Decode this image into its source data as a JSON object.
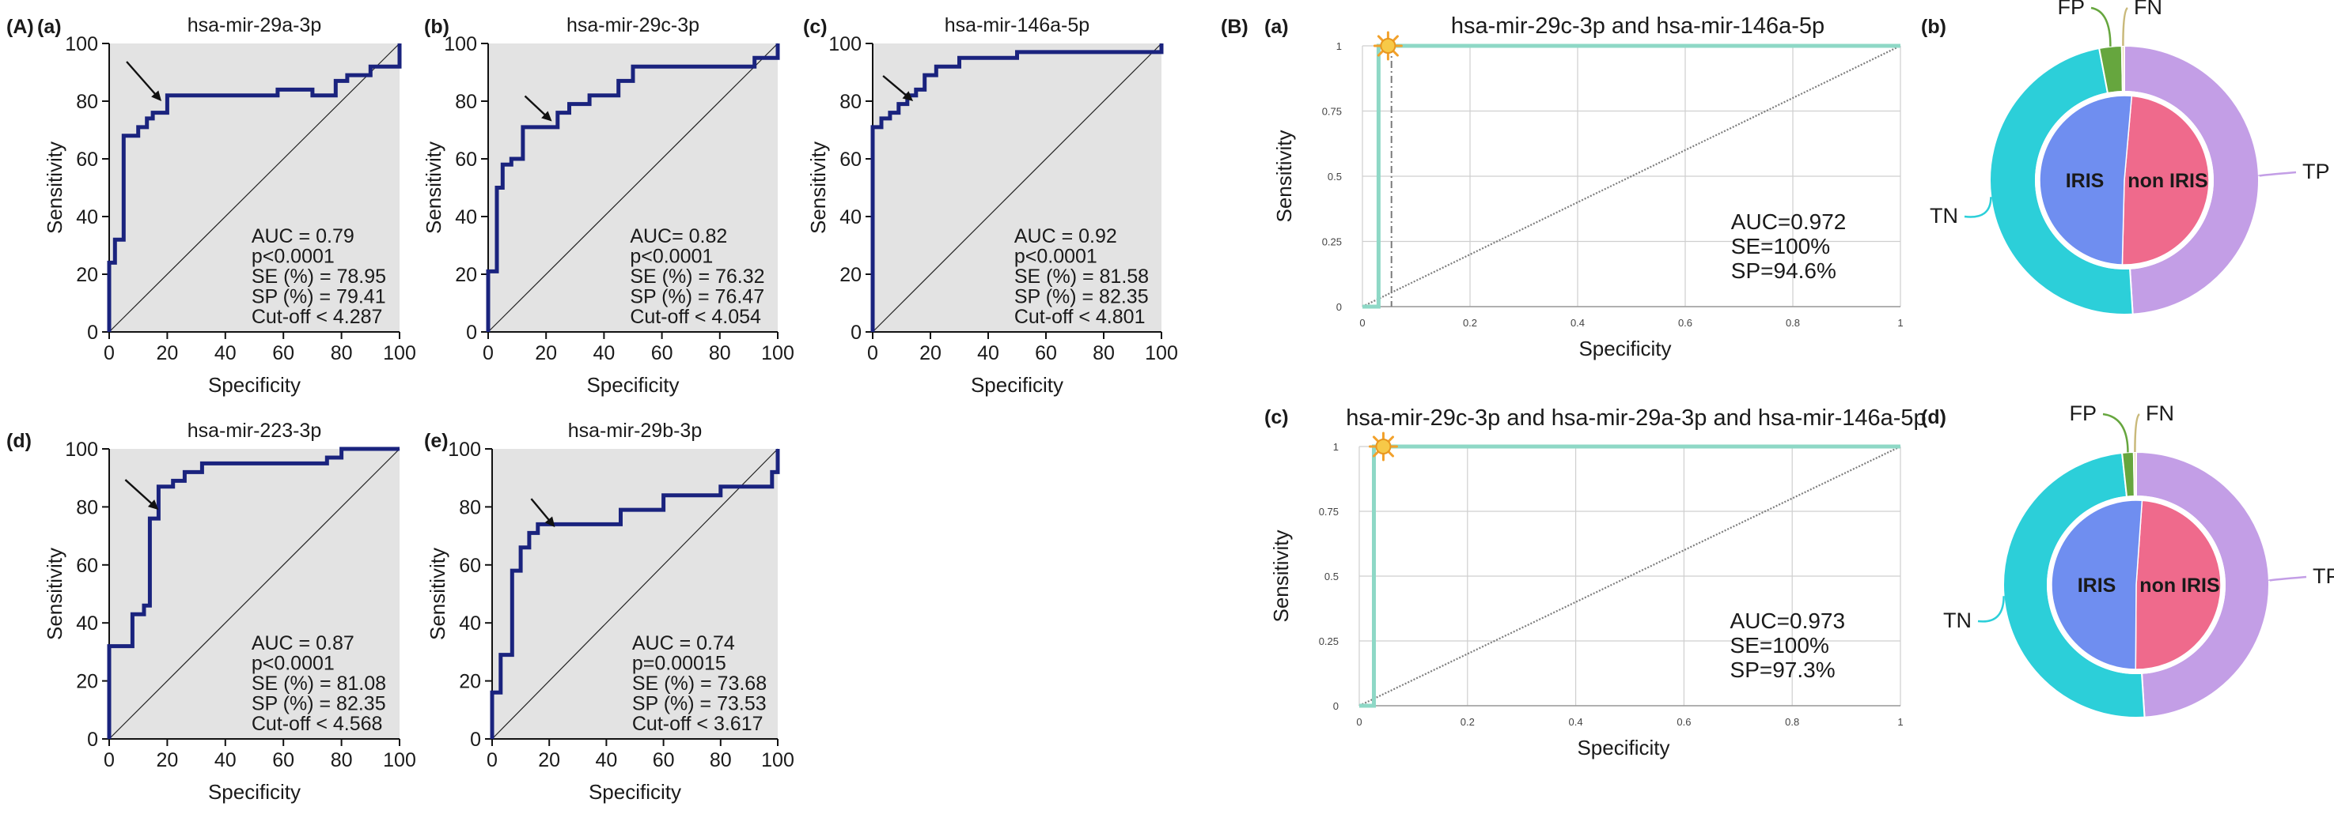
{
  "panel_labels": {
    "A": "(A)",
    "B": "(B)"
  },
  "chart_data": [
    {
      "id": "A-a",
      "type": "line",
      "label": "(a)",
      "title": "hsa-mir-29a-3p",
      "xlabel": "Specificity",
      "ylabel": "Sensitivity",
      "xlim": [
        0,
        100
      ],
      "ylim": [
        0,
        100
      ],
      "xticks": [
        "0",
        "20",
        "40",
        "60",
        "80",
        "100"
      ],
      "yticks": [
        "0",
        "20",
        "40",
        "60",
        "80",
        "100"
      ],
      "x": [
        0,
        0,
        2,
        2,
        5,
        5,
        10,
        10,
        13,
        13,
        15,
        15,
        20,
        20,
        58,
        58,
        70,
        70,
        78,
        78,
        82,
        82,
        90,
        90,
        100,
        100
      ],
      "y": [
        0,
        24,
        24,
        32,
        32,
        68,
        68,
        71,
        71,
        74,
        74,
        76,
        76,
        82,
        82,
        84,
        84,
        82,
        82,
        87,
        87,
        89,
        89,
        92,
        92,
        100
      ],
      "arrow_at": [
        18,
        80
      ],
      "stats": [
        "AUC = 0.79",
        "p<0.0001",
        "SE (%) = 78.95",
        "SP (%) = 79.41",
        "Cut-off < 4.287"
      ]
    },
    {
      "id": "A-b",
      "type": "line",
      "label": "(b)",
      "title": "hsa-mir-29c-3p",
      "xlabel": "Specificity",
      "ylabel": "Sensitivity",
      "xlim": [
        0,
        100
      ],
      "ylim": [
        0,
        100
      ],
      "xticks": [
        "0",
        "20",
        "40",
        "60",
        "80",
        "100"
      ],
      "yticks": [
        "0",
        "20",
        "40",
        "60",
        "80",
        "100"
      ],
      "x": [
        0,
        0,
        3,
        3,
        5,
        5,
        8,
        8,
        12,
        12,
        14,
        14,
        24,
        24,
        28,
        28,
        35,
        35,
        45,
        45,
        50,
        50,
        92,
        92,
        100,
        100
      ],
      "y": [
        0,
        21,
        21,
        50,
        50,
        58,
        58,
        60,
        60,
        71,
        71,
        71,
        71,
        76,
        76,
        79,
        79,
        82,
        82,
        87,
        87,
        92,
        92,
        95,
        95,
        100
      ],
      "arrow_at": [
        22,
        73
      ],
      "stats": [
        "AUC= 0.82",
        "p<0.0001",
        "SE (%) = 76.32",
        "SP (%) = 76.47",
        "Cut-off < 4.054"
      ]
    },
    {
      "id": "A-c",
      "type": "line",
      "label": "(c)",
      "title": "hsa-mir-146a-5p",
      "xlabel": "Specificity",
      "ylabel": "Sensitivity",
      "xlim": [
        0,
        100
      ],
      "ylim": [
        0,
        100
      ],
      "xticks": [
        "0",
        "20",
        "40",
        "60",
        "80",
        "100"
      ],
      "yticks": [
        "0",
        "20",
        "40",
        "60",
        "80",
        "100"
      ],
      "x": [
        0,
        0,
        3,
        3,
        6,
        6,
        9,
        9,
        12,
        12,
        15,
        15,
        18,
        18,
        22,
        22,
        30,
        30,
        40,
        40,
        50,
        50,
        60,
        60,
        100,
        100
      ],
      "y": [
        0,
        71,
        71,
        74,
        74,
        76,
        76,
        79,
        79,
        82,
        82,
        84,
        84,
        89,
        89,
        92,
        92,
        95,
        95,
        95,
        95,
        97,
        97,
        97,
        97,
        100
      ],
      "arrow_at": [
        14,
        80
      ],
      "stats": [
        "AUC = 0.92",
        "p<0.0001",
        "SE (%) = 81.58",
        "SP (%) = 82.35",
        "Cut-off < 4.801"
      ]
    },
    {
      "id": "A-d",
      "type": "line",
      "label": "(d)",
      "title": "hsa-mir-223-3p",
      "xlabel": "Specificity",
      "ylabel": "Sensitivity",
      "xlim": [
        0,
        100
      ],
      "ylim": [
        0,
        100
      ],
      "xticks": [
        "0",
        "20",
        "40",
        "60",
        "80",
        "100"
      ],
      "yticks": [
        "0",
        "20",
        "40",
        "60",
        "80",
        "100"
      ],
      "x": [
        0,
        0,
        8,
        8,
        12,
        12,
        14,
        14,
        17,
        17,
        19,
        19,
        22,
        22,
        26,
        26,
        32,
        32,
        42,
        42,
        75,
        75,
        80,
        80,
        100,
        100
      ],
      "y": [
        0,
        32,
        32,
        43,
        43,
        46,
        46,
        76,
        76,
        87,
        87,
        87,
        87,
        89,
        89,
        92,
        92,
        95,
        95,
        95,
        95,
        97,
        97,
        100,
        100,
        100
      ],
      "arrow_at": [
        17,
        79
      ],
      "stats": [
        "AUC = 0.87",
        "p<0.0001",
        "SE (%) = 81.08",
        "SP (%) = 82.35",
        "Cut-off < 4.568"
      ]
    },
    {
      "id": "A-e",
      "type": "line",
      "label": "(e)",
      "title": "hsa-mir-29b-3p",
      "xlabel": "Specificity",
      "ylabel": "Sensitivity",
      "xlim": [
        0,
        100
      ],
      "ylim": [
        0,
        100
      ],
      "xticks": [
        "0",
        "20",
        "40",
        "60",
        "80",
        "100"
      ],
      "yticks": [
        "0",
        "20",
        "40",
        "60",
        "80",
        "100"
      ],
      "x": [
        0,
        0,
        3,
        3,
        7,
        7,
        10,
        10,
        13,
        13,
        16,
        16,
        22,
        22,
        45,
        45,
        60,
        60,
        80,
        80,
        98,
        98,
        100,
        100
      ],
      "y": [
        0,
        16,
        16,
        29,
        29,
        58,
        58,
        66,
        66,
        71,
        71,
        74,
        74,
        74,
        74,
        79,
        79,
        84,
        84,
        87,
        87,
        92,
        92,
        100
      ],
      "arrow_at": [
        22,
        73
      ],
      "stats": [
        "AUC = 0.74",
        "p=0.00015",
        "SE (%) = 73.68",
        "SP (%) = 73.53",
        "Cut-off < 3.617"
      ]
    },
    {
      "id": "B-a",
      "type": "line",
      "label": "(a)",
      "title": "hsa-mir-29c-3p and hsa-mir-146a-5p",
      "xlabel": "Specificity",
      "ylabel": "Sensitivity",
      "xlim": [
        0,
        1
      ],
      "ylim": [
        0,
        1
      ],
      "xticks": [
        "0",
        "0.2",
        "0.4",
        "0.6",
        "0.8",
        "1"
      ],
      "yticks": [
        "0",
        "0.25",
        "0.5",
        "0.75",
        "1"
      ],
      "x": [
        0,
        0.03,
        0.03,
        1
      ],
      "y": [
        0,
        0,
        1,
        1
      ],
      "dashed_x": 0.054,
      "stats": [
        "AUC=0.972",
        "SE=100%",
        "SP=94.6%"
      ]
    },
    {
      "id": "B-c",
      "type": "line",
      "label": "(c)",
      "title": "hsa-mir-29c-3p and hsa-mir-29a-3p and hsa-mir-146a-5p",
      "xlabel": "Specificity",
      "ylabel": "Sensitivity",
      "xlim": [
        0,
        1
      ],
      "ylim": [
        0,
        1
      ],
      "xticks": [
        "0",
        "0.2",
        "0.4",
        "0.6",
        "0.8",
        "1"
      ],
      "yticks": [
        "0",
        "0.25",
        "0.5",
        "0.75",
        "1"
      ],
      "x": [
        0,
        0.027,
        0.027,
        1
      ],
      "y": [
        0,
        0,
        1,
        1
      ],
      "stats": [
        "AUC=0.973",
        "SE=100%",
        "SP=97.3%"
      ]
    },
    {
      "id": "B-b",
      "type": "pie",
      "label": "(b)",
      "inner": {
        "labels": [
          "IRIS",
          "non IRIS"
        ],
        "values": [
          51,
          49
        ],
        "colors": [
          "#6f8ef0",
          "#ef6a8c"
        ]
      },
      "outer": {
        "labels": [
          "TP",
          "TN",
          "FP",
          "FN"
        ],
        "values": [
          49,
          48,
          2.7,
          0.3
        ],
        "colors": [
          "#c39ee6",
          "#2ccfd9",
          "#66a63e",
          "#e9d9a5"
        ]
      }
    },
    {
      "id": "B-d",
      "type": "pie",
      "label": "(d)",
      "inner": {
        "labels": [
          "IRIS",
          "non IRIS"
        ],
        "values": [
          51,
          49
        ],
        "colors": [
          "#6f8ef0",
          "#ef6a8c"
        ]
      },
      "outer": {
        "labels": [
          "TP",
          "TN",
          "FP",
          "FN"
        ],
        "values": [
          49,
          49.3,
          1.4,
          0.3
        ],
        "colors": [
          "#c39ee6",
          "#2ccfd9",
          "#66a63e",
          "#e9d9a5"
        ]
      }
    }
  ]
}
